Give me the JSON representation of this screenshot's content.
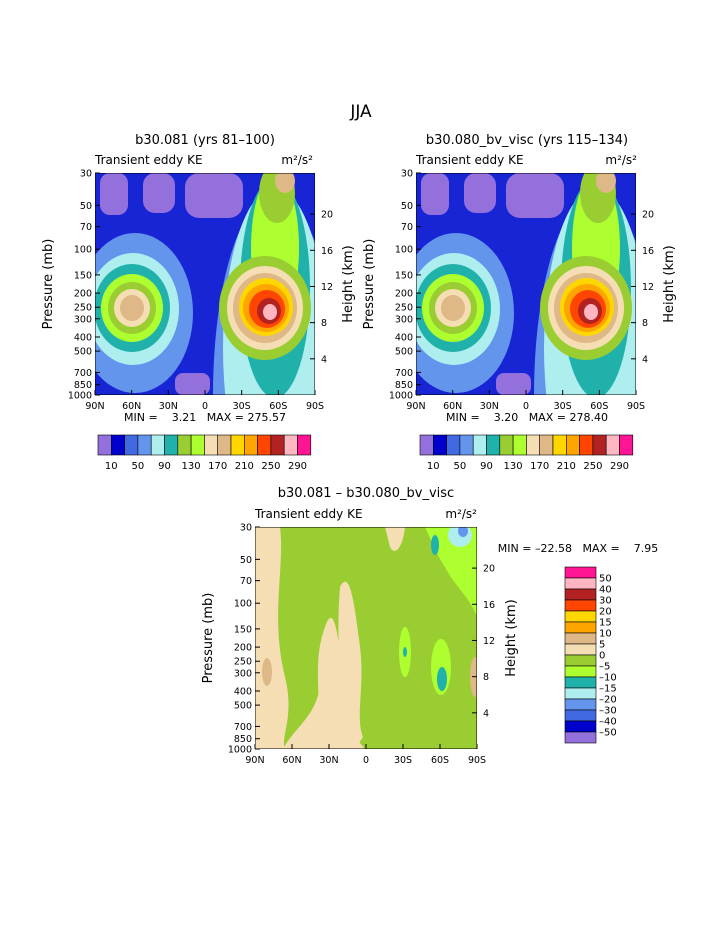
{
  "page_title": "JJA",
  "units_text": "m²/s²",
  "colors": {
    "ke_scale": [
      "#9370db",
      "#0000cd",
      "#4169e1",
      "#6495ed",
      "#afeeee",
      "#20b2aa",
      "#9acd32",
      "#adff2f",
      "#f5deb3",
      "#deb887",
      "#ffd700",
      "#ffa500",
      "#ff4500",
      "#b22222",
      "#ffb6c1",
      "#ff1493"
    ],
    "diff_scale": [
      "#9370db",
      "#0000cd",
      "#4169e1",
      "#6495ed",
      "#afeeee",
      "#20b2aa",
      "#adff2f",
      "#9acd32",
      "#f5deb3",
      "#deb887",
      "#ffa500",
      "#ffd700",
      "#ff4500",
      "#b22222",
      "#ffb6c1",
      "#ff1493"
    ]
  },
  "chart_data": [
    {
      "type": "heatmap",
      "title": "b30.081 (yrs 81–100)",
      "subtitle": "Transient eddy KE",
      "ylabel": "Pressure (mb)",
      "ylabel_right": "Height (km)",
      "x_ticks": [
        "90N",
        "60N",
        "30N",
        "0",
        "30S",
        "60S",
        "90S"
      ],
      "y_ticks": [
        30,
        50,
        70,
        100,
        150,
        200,
        250,
        300,
        400,
        500,
        700,
        850,
        1000
      ],
      "right_ticks": [
        20,
        16,
        12,
        8,
        4
      ],
      "stats": "MIN =    3.21   MAX = 275.57",
      "min": 3.21,
      "max": 275.57,
      "colorbar_labels": [
        "10",
        "50",
        "90",
        "130",
        "170",
        "210",
        "250",
        "290"
      ],
      "features": [
        {
          "lat": -48,
          "p": 280,
          "peak": 275.57
        },
        {
          "lat": 63,
          "p": 265,
          "peak": 190
        },
        {
          "lat": -63,
          "p": 30,
          "peak": 170
        }
      ]
    },
    {
      "type": "heatmap",
      "title": "b30.080_bv_visc (yrs 115–134)",
      "subtitle": "Transient eddy KE",
      "ylabel": "Pressure (mb)",
      "ylabel_right": "Height (km)",
      "x_ticks": [
        "90N",
        "60N",
        "30N",
        "0",
        "30S",
        "60S",
        "90S"
      ],
      "y_ticks": [
        30,
        50,
        70,
        100,
        150,
        200,
        250,
        300,
        400,
        500,
        700,
        850,
        1000
      ],
      "right_ticks": [
        20,
        16,
        12,
        8,
        4
      ],
      "stats": "MIN =    3.20   MAX = 278.40",
      "min": 3.2,
      "max": 278.4,
      "colorbar_labels": [
        "10",
        "50",
        "90",
        "130",
        "170",
        "210",
        "250",
        "290"
      ],
      "features": [
        {
          "lat": -48,
          "p": 280,
          "peak": 278.4
        },
        {
          "lat": 63,
          "p": 265,
          "peak": 190
        },
        {
          "lat": -63,
          "p": 30,
          "peak": 170
        }
      ]
    },
    {
      "type": "heatmap",
      "title": "b30.081 – b30.080_bv_visc",
      "subtitle": "Transient eddy KE",
      "ylabel": "Pressure (mb)",
      "ylabel_right": "Height (km)",
      "x_ticks": [
        "90N",
        "60N",
        "30N",
        "0",
        "30S",
        "60S",
        "90S"
      ],
      "y_ticks": [
        30,
        50,
        70,
        100,
        150,
        200,
        250,
        300,
        400,
        500,
        700,
        850,
        1000
      ],
      "right_ticks": [
        20,
        16,
        12,
        8,
        4
      ],
      "stats": "MIN = –22.58   MAX =    7.95",
      "min": -22.58,
      "max": 7.95,
      "colorbar_labels": [
        "50",
        "40",
        "30",
        "20",
        "15",
        "10",
        "5",
        "0",
        "–5",
        "–10",
        "–15",
        "–20",
        "–30",
        "–40",
        "–50"
      ]
    }
  ]
}
